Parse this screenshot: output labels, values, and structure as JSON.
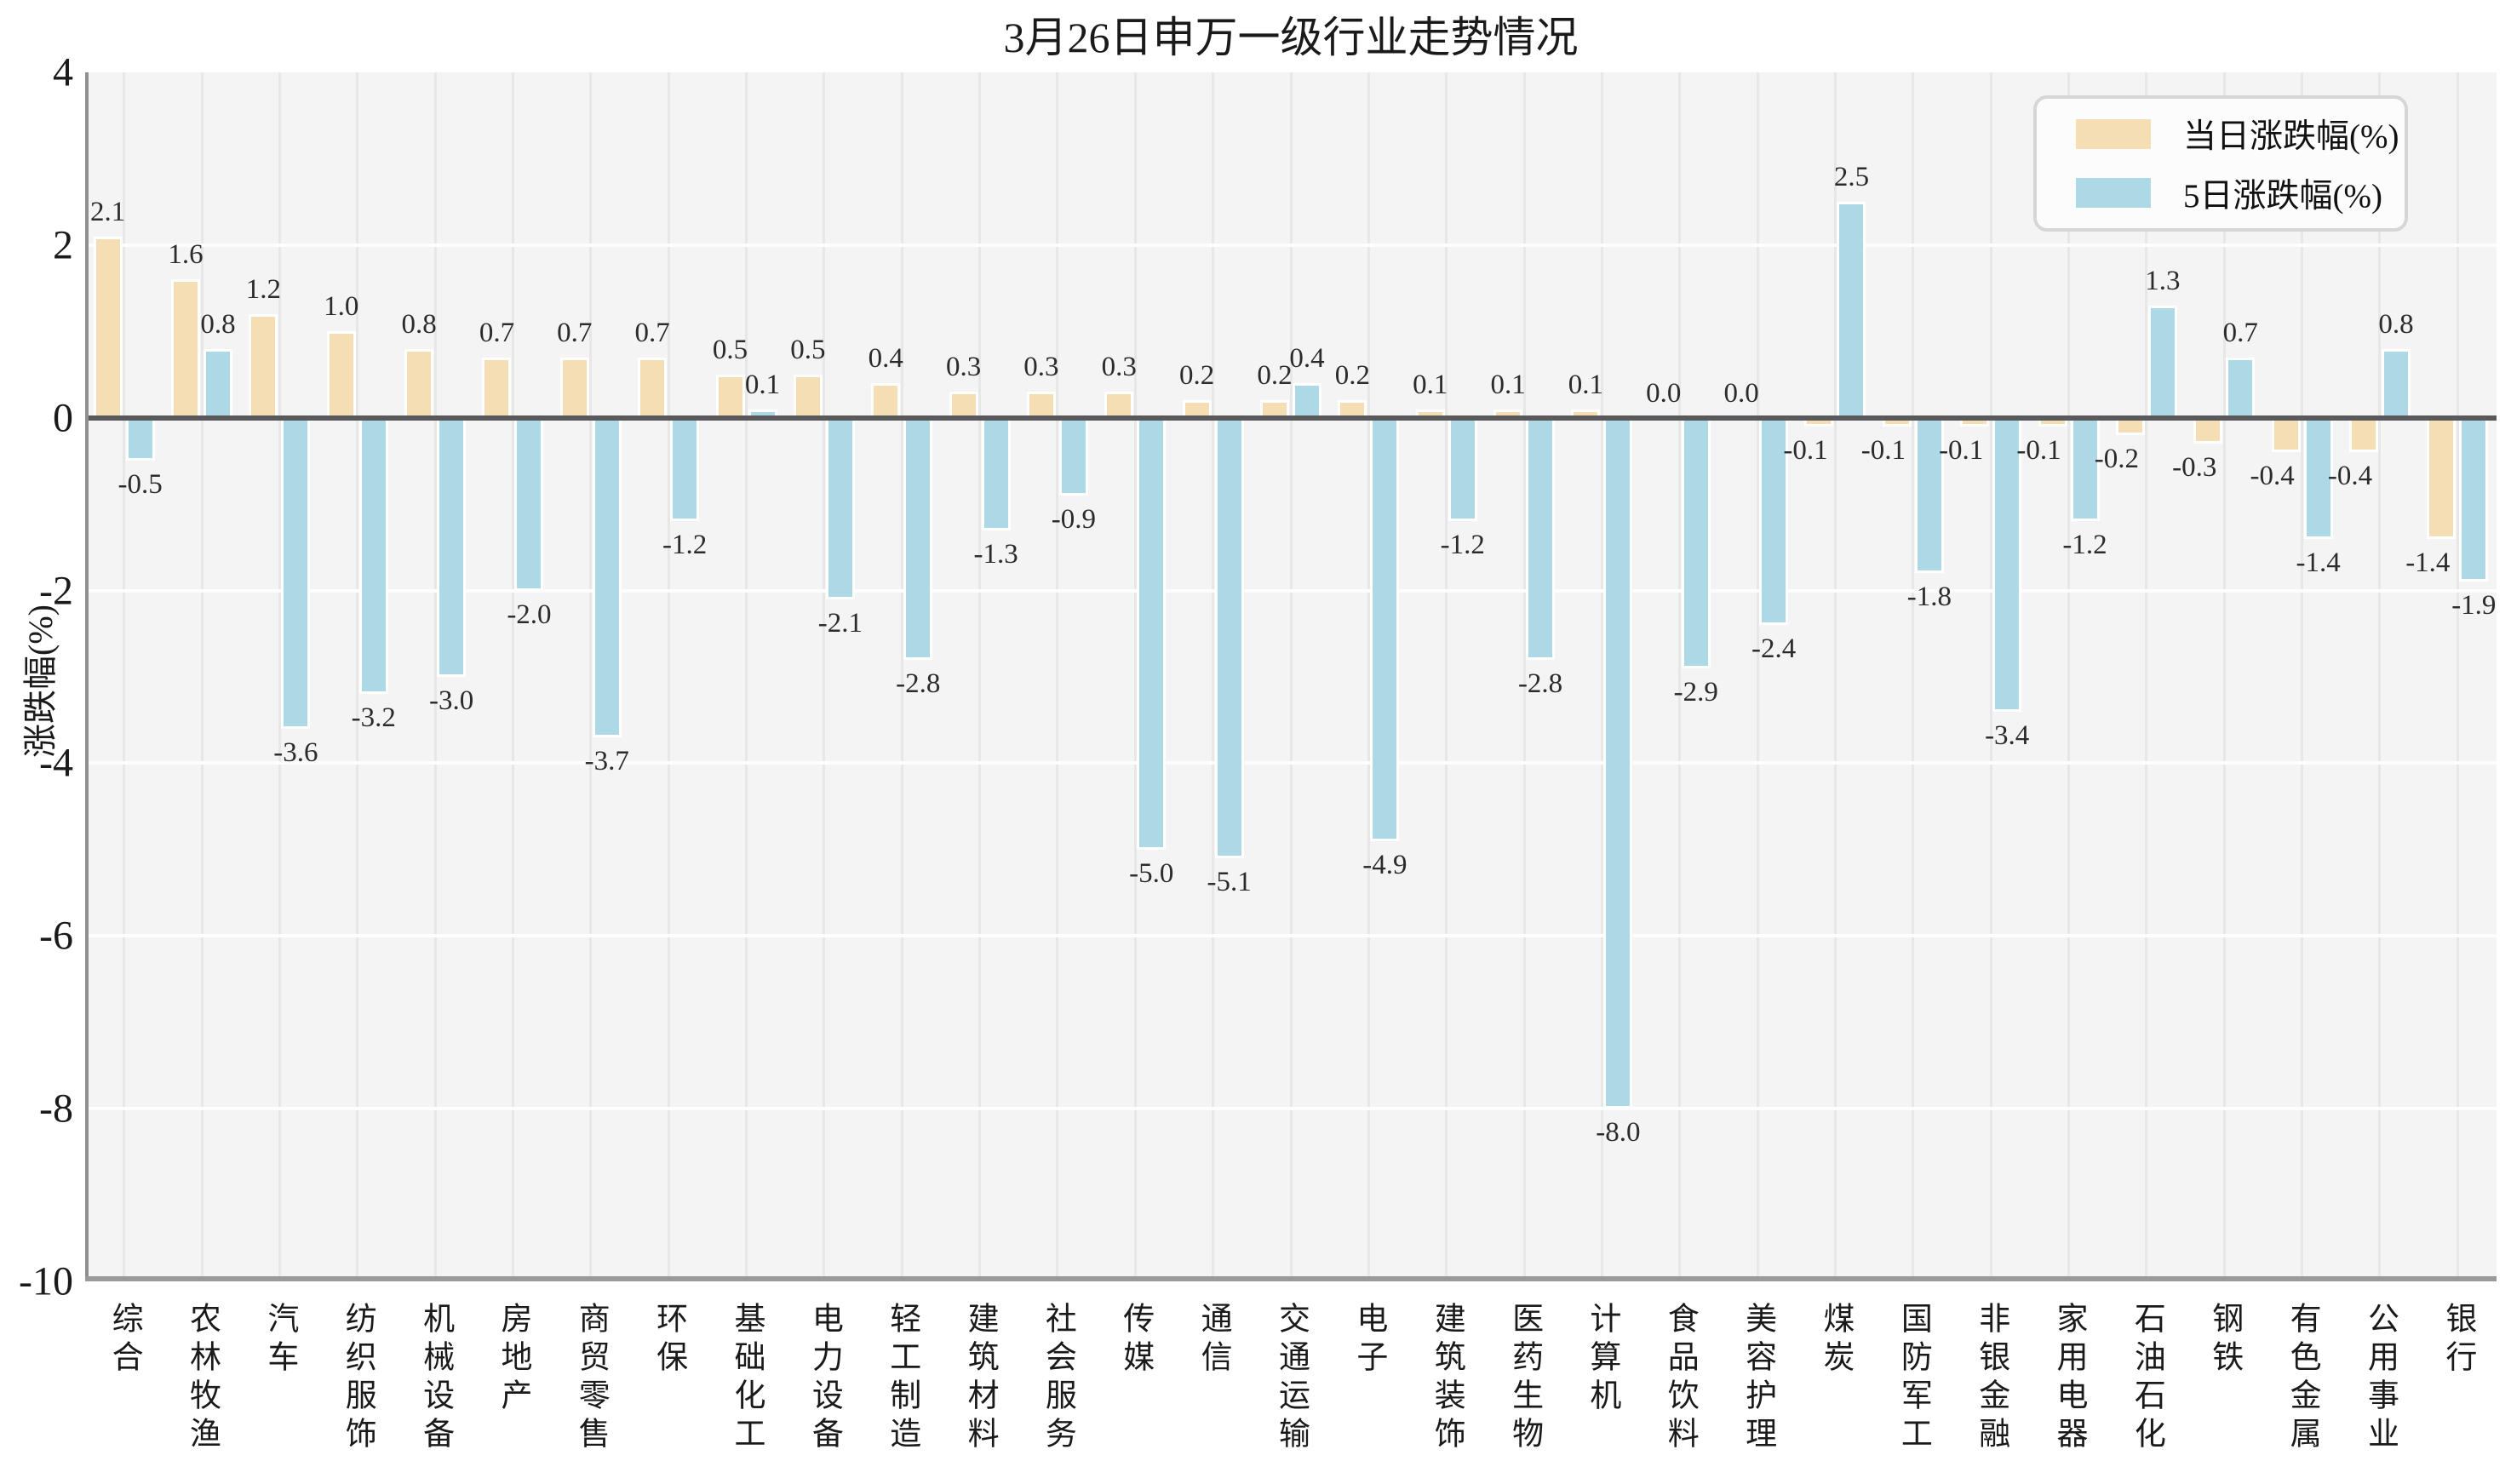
{
  "title": "3月26日申万一级行业走势情况",
  "colors": {
    "daily_bar": "#F5DEB3",
    "five_day_bar": "#ADD8E6",
    "plot_background": "#f4f4f4",
    "zero_line": "#59595b",
    "bar_edge": "#ffffff"
  },
  "legend": {
    "entries": [
      {
        "label": "当日涨跌幅(%)",
        "color": "#F5DEB3"
      },
      {
        "label": "5日涨跌幅(%)",
        "color": "#ADD8E6"
      }
    ],
    "position": "upper right"
  },
  "chart_data": {
    "type": "bar",
    "title": "3月26日申万一级行业走势情况",
    "xlabel": "",
    "ylabel": "涨跌幅(%)",
    "ylim": [
      -10,
      4
    ],
    "yticks": [
      4,
      2,
      0,
      -2,
      -4,
      -6,
      -8,
      -10
    ],
    "grid": true,
    "legend_position": "upper right",
    "categories": [
      "综合",
      "农林牧渔",
      "汽车",
      "纺织服饰",
      "机械设备",
      "房地产",
      "商贸零售",
      "环保",
      "基础化工",
      "电力设备",
      "轻工制造",
      "建筑材料",
      "社会服务",
      "传媒",
      "通信",
      "交通运输",
      "电子",
      "建筑装饰",
      "医药生物",
      "计算机",
      "食品饮料",
      "美容护理",
      "煤炭",
      "国防军工",
      "非银金融",
      "家用电器",
      "石油石化",
      "钢铁",
      "有色金属",
      "公用事业",
      "银行"
    ],
    "series": [
      {
        "name": "当日涨跌幅(%)",
        "color": "#F5DEB3",
        "values": [
          2.1,
          1.6,
          1.2,
          1.0,
          0.8,
          0.7,
          0.7,
          0.7,
          0.5,
          0.5,
          0.4,
          0.3,
          0.3,
          0.3,
          0.2,
          0.2,
          0.2,
          0.1,
          0.1,
          0.1,
          0.0,
          0.0,
          -0.1,
          -0.1,
          -0.1,
          -0.1,
          -0.2,
          -0.3,
          -0.4,
          -0.4,
          -1.4
        ]
      },
      {
        "name": "5日涨跌幅(%)",
        "color": "#ADD8E6",
        "values": [
          -0.5,
          0.8,
          -3.6,
          -3.2,
          -3.0,
          -2.0,
          -3.7,
          -1.2,
          0.1,
          -2.1,
          -2.8,
          -1.3,
          -0.9,
          -5.0,
          -5.1,
          0.4,
          -4.9,
          -1.2,
          -2.8,
          -8.0,
          -2.9,
          -2.4,
          2.5,
          -1.8,
          -3.4,
          -1.2,
          1.3,
          0.7,
          -1.4,
          0.8,
          -1.9
        ]
      }
    ]
  }
}
